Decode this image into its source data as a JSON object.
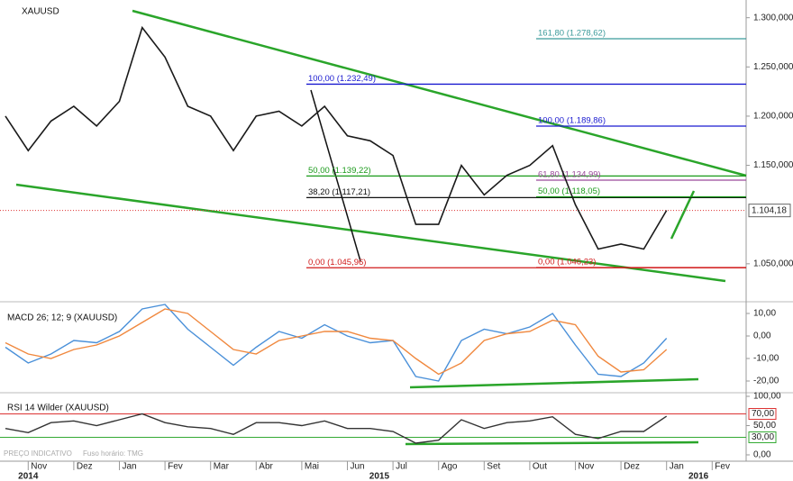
{
  "chart_data": [
    {
      "type": "line",
      "title": "XAUUSD",
      "categories": [
        null,
        "Nov",
        null,
        "Dez",
        null,
        "Jan",
        null,
        "Fev",
        null,
        "Mar",
        null,
        "Abr",
        null,
        "Mai",
        null,
        "Jun",
        null,
        "Jul",
        null,
        "Ago",
        null,
        "Set",
        null,
        "Out",
        null,
        "Nov",
        null,
        "Dez",
        null,
        "Jan",
        null,
        "Fev"
      ],
      "years": [
        "2014",
        "2015",
        "2016"
      ],
      "series": [
        {
          "color": "#1a1a1a",
          "values": [
            1200,
            1165,
            1195,
            1210,
            1190,
            1215,
            1290,
            1260,
            1210,
            1200,
            1165,
            1200,
            1205,
            1190,
            1210,
            1180,
            1175,
            1160,
            1090,
            1090,
            1150,
            1120,
            1140,
            1150,
            1170,
            1110,
            1065,
            1070,
            1065,
            1104.18,
            null,
            null
          ]
        }
      ],
      "ylim": [
        1016,
        1318
      ],
      "yticks": [
        {
          "value": 1300,
          "label": "1.300,000"
        },
        {
          "value": 1250,
          "label": "1.250,000"
        },
        {
          "value": 1200,
          "label": "1.200,000"
        },
        {
          "value": 1150,
          "label": "1.150,000"
        },
        {
          "value": 1050,
          "label": "1.050,000"
        }
      ],
      "last_value": {
        "value": 1104.18,
        "label": "1.104,18",
        "color": "#d33"
      },
      "fibonacci_1": [
        {
          "value": 1232.49,
          "label": "100,00 (1.232,49)",
          "color": "#1a1ad0"
        },
        {
          "value": 1139.22,
          "label": "50,00 (1.139,22)",
          "color": "#1a9a1a"
        },
        {
          "value": 1117.21,
          "label": "38,20 (1.117,21)",
          "color": "#111111"
        },
        {
          "value": 1045.96,
          "label": "0,00 (1.045,96)",
          "color": "#d01a1a"
        }
      ],
      "fibonacci_2": [
        {
          "value": 1278.62,
          "label": "161,80 (1.278,62)",
          "color": "#3a9a9a"
        },
        {
          "value": 1189.86,
          "label": "100,00 (1.189,86)",
          "color": "#1a1ad0"
        },
        {
          "value": 1134.99,
          "label": "61,80 (1.134,99)",
          "color": "#9a4a9a"
        },
        {
          "value": 1118.05,
          "label": "50,00 (1.118,05)",
          "color": "#1a9a1a"
        },
        {
          "value": 1046.23,
          "label": "0,00 (1.046,23)",
          "color": "#d01a1a"
        }
      ]
    },
    {
      "type": "line",
      "title": "MACD 26; 12; 9 (XAUUSD)",
      "series": [
        {
          "color": "#4a90d9",
          "values": [
            -5,
            -12,
            -8,
            -2,
            -3,
            2,
            12,
            14,
            3,
            -5,
            -13,
            -5,
            2,
            -1,
            5,
            0,
            -3,
            -2,
            -18,
            -20,
            -2,
            3,
            1,
            4,
            10,
            -4,
            -17,
            -18,
            -12,
            -1,
            null,
            null
          ]
        },
        {
          "color": "#f0883e",
          "values": [
            -3,
            -8,
            -10,
            -6,
            -4,
            0,
            6,
            12,
            10,
            2,
            -6,
            -8,
            -2,
            0,
            2,
            2,
            -1,
            -2,
            -10,
            -17,
            -12,
            -2,
            1,
            2,
            7,
            5,
            -9,
            -16,
            -15,
            -6,
            null,
            null
          ]
        }
      ],
      "ylim": [
        -23.6,
        13.2
      ],
      "yticks": [
        {
          "value": 10,
          "label": "10,00"
        },
        {
          "value": 0,
          "label": "0,00"
        },
        {
          "value": -10,
          "label": "-10,00"
        },
        {
          "value": -20,
          "label": "-20,00"
        }
      ]
    },
    {
      "type": "line",
      "title": "RSI 14 Wilder (XAUUSD)",
      "series": [
        {
          "color": "#333333",
          "values": [
            45,
            38,
            55,
            58,
            50,
            60,
            70,
            55,
            48,
            45,
            35,
            55,
            55,
            50,
            58,
            45,
            45,
            40,
            20,
            25,
            60,
            45,
            55,
            58,
            65,
            35,
            28,
            40,
            40,
            66,
            null,
            null
          ]
        }
      ],
      "ylim": [
        -10.8,
        100
      ],
      "yticks": [
        {
          "value": 100,
          "label": "100,00"
        },
        {
          "value": 50,
          "label": "50,00"
        },
        {
          "value": 0,
          "label": "0,00"
        }
      ],
      "levels": [
        {
          "value": 70,
          "label": "70,00",
          "color": "#d33"
        },
        {
          "value": 30,
          "label": "30,00",
          "color": "#3a3"
        }
      ]
    }
  ],
  "footer": "PREÇO INDICATIVO",
  "timezone": "Fuso horário: TMG"
}
